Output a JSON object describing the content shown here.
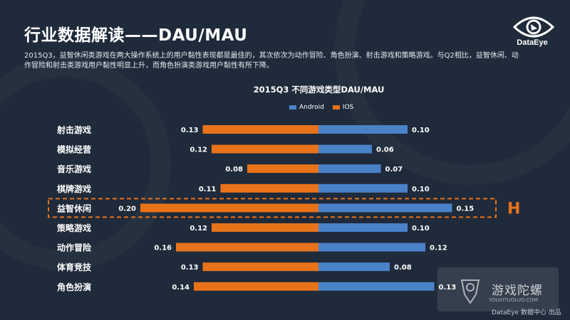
{
  "header": {
    "title": "行业数据解读——DAU/MAU",
    "brand": "DataEye",
    "description": "2015Q3，益智休闲类游戏在两大操作系统上的用户黏性表现都是最佳的，其次依次为动作冒险、角色扮演、射击游戏和策略游戏。与Q2相比，益智休闲、动作冒险和射击类游戏用户黏性明显上升，而角色扮演类游戏用户黏性有所下降。"
  },
  "colors": {
    "background": "#1f2a3a",
    "android": "#4a82c8",
    "ios": "#e8731b",
    "highlight": "#e8731b"
  },
  "chart_data": {
    "type": "bar",
    "title": "2015Q3   不同游戏类型DAU/MAU",
    "legend": [
      "Android",
      "IOS"
    ],
    "legend_position": "top",
    "categories": [
      "射击游戏",
      "模拟经营",
      "音乐游戏",
      "棋牌游戏",
      "益智休闲",
      "策略游戏",
      "动作冒险",
      "体育竞技",
      "角色扮演"
    ],
    "series": [
      {
        "name": "Android",
        "values": [
          0.1,
          0.06,
          0.07,
          0.1,
          0.15,
          0.1,
          0.12,
          0.08,
          0.13
        ]
      },
      {
        "name": "IOS",
        "values": [
          0.13,
          0.12,
          0.08,
          0.11,
          0.2,
          0.12,
          0.16,
          0.13,
          0.14
        ]
      }
    ],
    "value_labels": {
      "Android": [
        "0.10",
        "0.06",
        "0.07",
        "0.10",
        "0.15",
        "0.10",
        "0.12",
        "0.08",
        "0.13"
      ],
      "IOS": [
        "0.13",
        "0.12",
        "0.08",
        "0.11",
        "0.20",
        "0.12",
        "0.16",
        "0.13",
        "0.14"
      ]
    },
    "highlight_category": "益智休闲",
    "highlight_mark": "H",
    "grid": false
  },
  "footer": {
    "watermark": "游戏陀螺",
    "watermark_url": "YOUXITUOLUO.COM",
    "credit": "DataEye 数据中心 出品"
  }
}
